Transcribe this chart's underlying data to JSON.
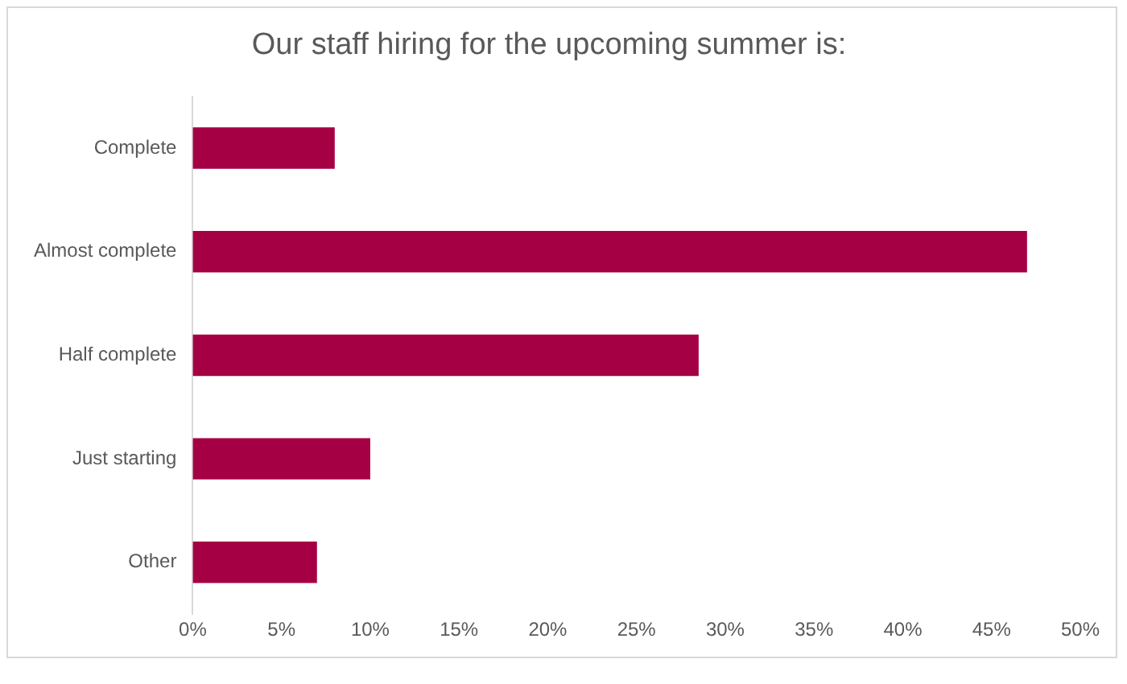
{
  "chart_data": {
    "type": "bar",
    "orientation": "horizontal",
    "title": "Our staff hiring for the upcoming summer is:",
    "categories": [
      "Complete",
      "Almost complete",
      "Half complete",
      "Just starting",
      "Other"
    ],
    "values": [
      8,
      47,
      28.5,
      10,
      7
    ],
    "color": "#a50044",
    "xlim": [
      0,
      50
    ],
    "xticks": [
      {
        "value": 0,
        "label": "0%"
      },
      {
        "value": 5,
        "label": "5%"
      },
      {
        "value": 10,
        "label": "10%"
      },
      {
        "value": 15,
        "label": "15%"
      },
      {
        "value": 20,
        "label": "20%"
      },
      {
        "value": 25,
        "label": "25%"
      },
      {
        "value": 30,
        "label": "30%"
      },
      {
        "value": 35,
        "label": "35%"
      },
      {
        "value": 40,
        "label": "40%"
      },
      {
        "value": 45,
        "label": "45%"
      },
      {
        "value": 50,
        "label": "50%"
      }
    ],
    "grid": false,
    "legend": false
  }
}
